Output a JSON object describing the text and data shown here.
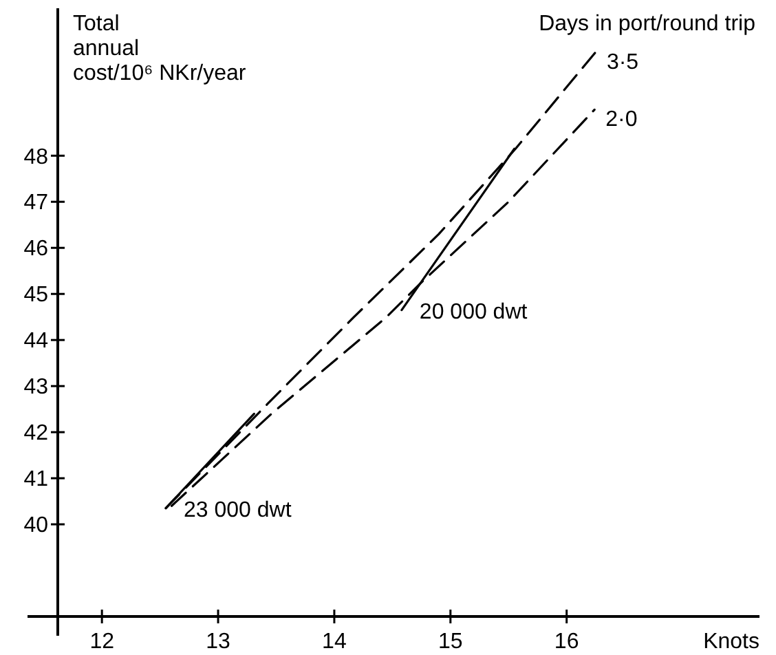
{
  "chart_data": {
    "type": "line",
    "ylabel": "Total annual cost/10⁶ NKr/year",
    "xlabel": "Knots",
    "legend_title": "Days in port/round trip",
    "xlim": [
      11.62,
      17.66
    ],
    "xticks": [
      12,
      13,
      14,
      15,
      16
    ],
    "ylim": [
      38,
      51.2
    ],
    "yticks": [
      40,
      41,
      42,
      43,
      44,
      45,
      46,
      47,
      48
    ],
    "grid": false,
    "series": [
      {
        "name": "3·5",
        "color": "#000000",
        "line_style": "dashed",
        "x": [
          12.55,
          13.42,
          14.17,
          14.9,
          15.56,
          16.25
        ],
        "values": [
          40.35,
          42.6,
          44.5,
          46.3,
          48.15,
          50.25
        ]
      },
      {
        "name": "2·0",
        "color": "#000000",
        "line_style": "dashed",
        "x": [
          12.6,
          13.46,
          14.45,
          14.75,
          15.5,
          16.24
        ],
        "values": [
          40.4,
          42.4,
          44.5,
          45.25,
          47.0,
          49.0
        ]
      },
      {
        "color": "#000000",
        "line_style": "solid",
        "x": [
          12.55,
          13.31
        ],
        "values": [
          40.35,
          42.4
        ]
      },
      {
        "color": "#000000",
        "line_style": "solid",
        "x": [
          14.58,
          15.55
        ],
        "values": [
          44.65,
          48.15
        ]
      }
    ],
    "annotations": [
      {
        "text": "23 000 dwt",
        "x": 12.55,
        "y": 40.35
      },
      {
        "text": "20 000 dwt",
        "x": 14.58,
        "y": 44.65
      }
    ]
  }
}
